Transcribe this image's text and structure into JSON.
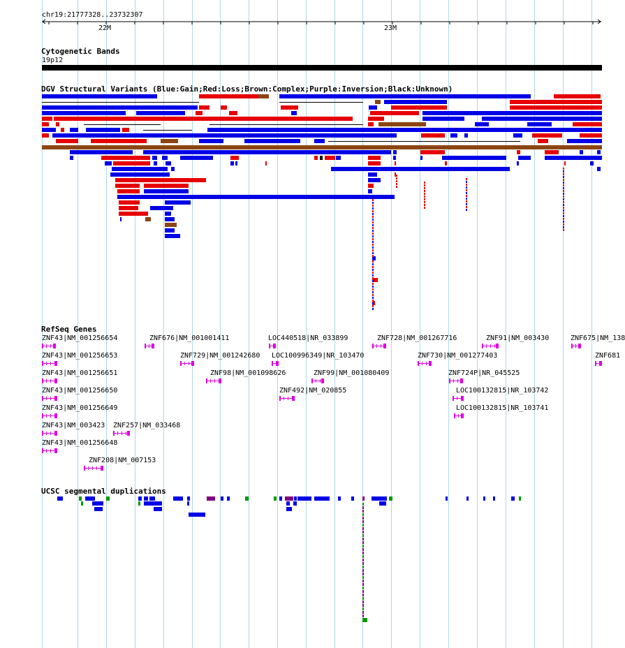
{
  "ruler": {
    "coordinates": "chr19:21777328..23732307",
    "tick_labels": [
      "22M",
      "23M"
    ]
  },
  "tracks": {
    "cytoband": {
      "title": "Cytogenetic Bands",
      "band": "19p12"
    },
    "dgv": {
      "title": "DGV Structural Variants (Blue:Gain;Red:Loss;Brown:Complex;Purple:Inversion;Black:Unknown)"
    },
    "refseq": {
      "title": "RefSeq Genes",
      "genes": [
        "ZNF43|NM_001256654",
        "ZNF676|NM_001001411",
        "LOC440518|NR_033899",
        "ZNF728|NM_001267716",
        "ZNF91|NM_003430",
        "ZNF675|NM_138",
        "ZNF43|NM_001256653",
        "ZNF729|NM_001242680",
        "LOC100996349|NR_103470",
        "ZNF730|NM_001277403",
        "ZNF681",
        "ZNF43|NM_001256651",
        "ZNF98|NM_001098626",
        "ZNF99|NM_001080409",
        "ZNF724P|NR_045525",
        "ZNF43|NM_001256650",
        "ZNF492|NM_020855",
        "LOC100132815|NR_103742",
        "ZNF43|NM_001256649",
        "LOC100132815|NR_103741",
        "ZNF43|NM_003423",
        "ZNF257|NM_033468",
        "ZNF43|NM_001256648",
        "ZNF208|NM_007153"
      ]
    },
    "segdups": {
      "title": "UCSC segmental duplications"
    }
  },
  "colors": {
    "gain": "#0000e6",
    "loss": "#e60000",
    "complex": "#8b4513",
    "inversion": "#800080",
    "unknown": "#000000",
    "gene": "#e000e0",
    "segdup_green": "#009900",
    "grid": "#add8e6"
  }
}
